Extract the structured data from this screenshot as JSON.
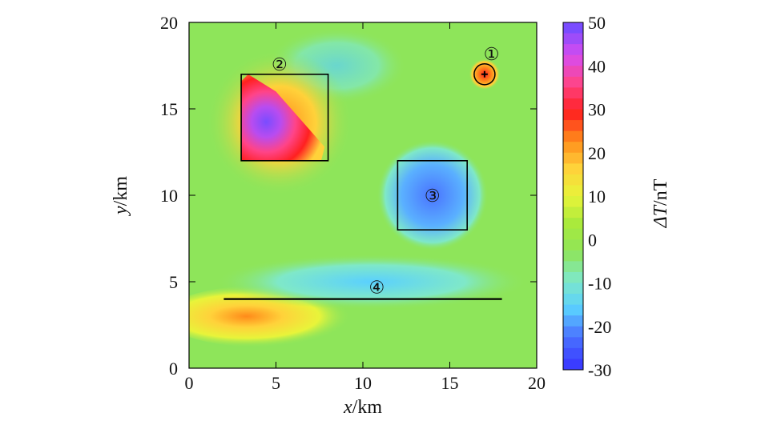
{
  "chart_data": {
    "type": "heatmap",
    "title": "",
    "x_ticks": [
      0,
      5,
      10,
      15,
      20
    ],
    "y_ticks": [
      0,
      5,
      10,
      15,
      20
    ],
    "xlim": [
      0,
      20
    ],
    "ylim": [
      0,
      20
    ],
    "colorbar": {
      "label_symbol": "ΔT",
      "label_unit": "/nT",
      "min": -30,
      "max": 50,
      "ticks": [
        50,
        40,
        30,
        20,
        10,
        0,
        -10,
        -20,
        -30
      ],
      "tick_labels": [
        "50",
        "40",
        "30",
        "20",
        "10",
        "0",
        "-10",
        "-20",
        "-30"
      ],
      "colors": [
        "#3a3cff",
        "#4a73ff",
        "#5ad0ff",
        "#7fe8c8",
        "#8ee55a",
        "#a8ea3c",
        "#e8f43a",
        "#ffd23a",
        "#ff8a1a",
        "#ff2020",
        "#ff4488",
        "#d84cf0",
        "#7a4cff"
      ]
    },
    "anomalies": [
      {
        "id": "1",
        "label": "①",
        "shape": "circle",
        "center": [
          17,
          17
        ],
        "radius": 0.6,
        "peak": 25,
        "label_pos": [
          17.4,
          18.2
        ]
      },
      {
        "id": "2",
        "label": "②",
        "shape": "rect",
        "x": [
          3,
          8
        ],
        "y": [
          12,
          17
        ],
        "peak": 45,
        "label_pos": [
          5.2,
          17.6
        ]
      },
      {
        "id": "3",
        "label": "③",
        "shape": "rect",
        "x": [
          12,
          16
        ],
        "y": [
          8,
          12
        ],
        "peak": -28,
        "label_pos": [
          14.0,
          10.0
        ]
      },
      {
        "id": "4",
        "label": "④",
        "shape": "line",
        "x": [
          2,
          18
        ],
        "y": [
          4,
          4
        ],
        "peak": -12,
        "label_pos": [
          10.8,
          4.7
        ]
      }
    ],
    "xlabel_var": "x",
    "xlabel_unit": "/km",
    "ylabel_var": "y",
    "ylabel_unit": "/km"
  },
  "colors": {
    "frame": "#000000",
    "background": "#8ee55a"
  }
}
